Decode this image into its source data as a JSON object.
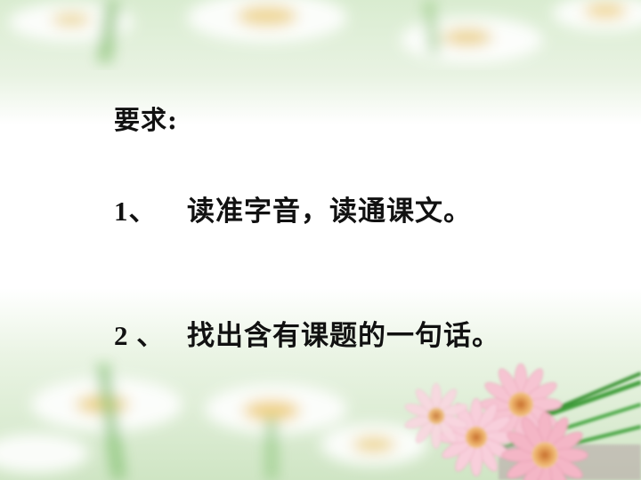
{
  "slide": {
    "heading": "要求:",
    "items": [
      {
        "number": "1、",
        "text": "读准字音，读通课文。"
      },
      {
        "number": "2 、",
        "text": "找出含有课题的一句话。"
      }
    ]
  },
  "colors": {
    "text": "#111111",
    "background_light": "#ffffff",
    "background_green": "#c8e6b8",
    "petal_pink": "#f4b6c6",
    "flower_center": "#e8a860",
    "stem_green": "#3f9e3a"
  }
}
